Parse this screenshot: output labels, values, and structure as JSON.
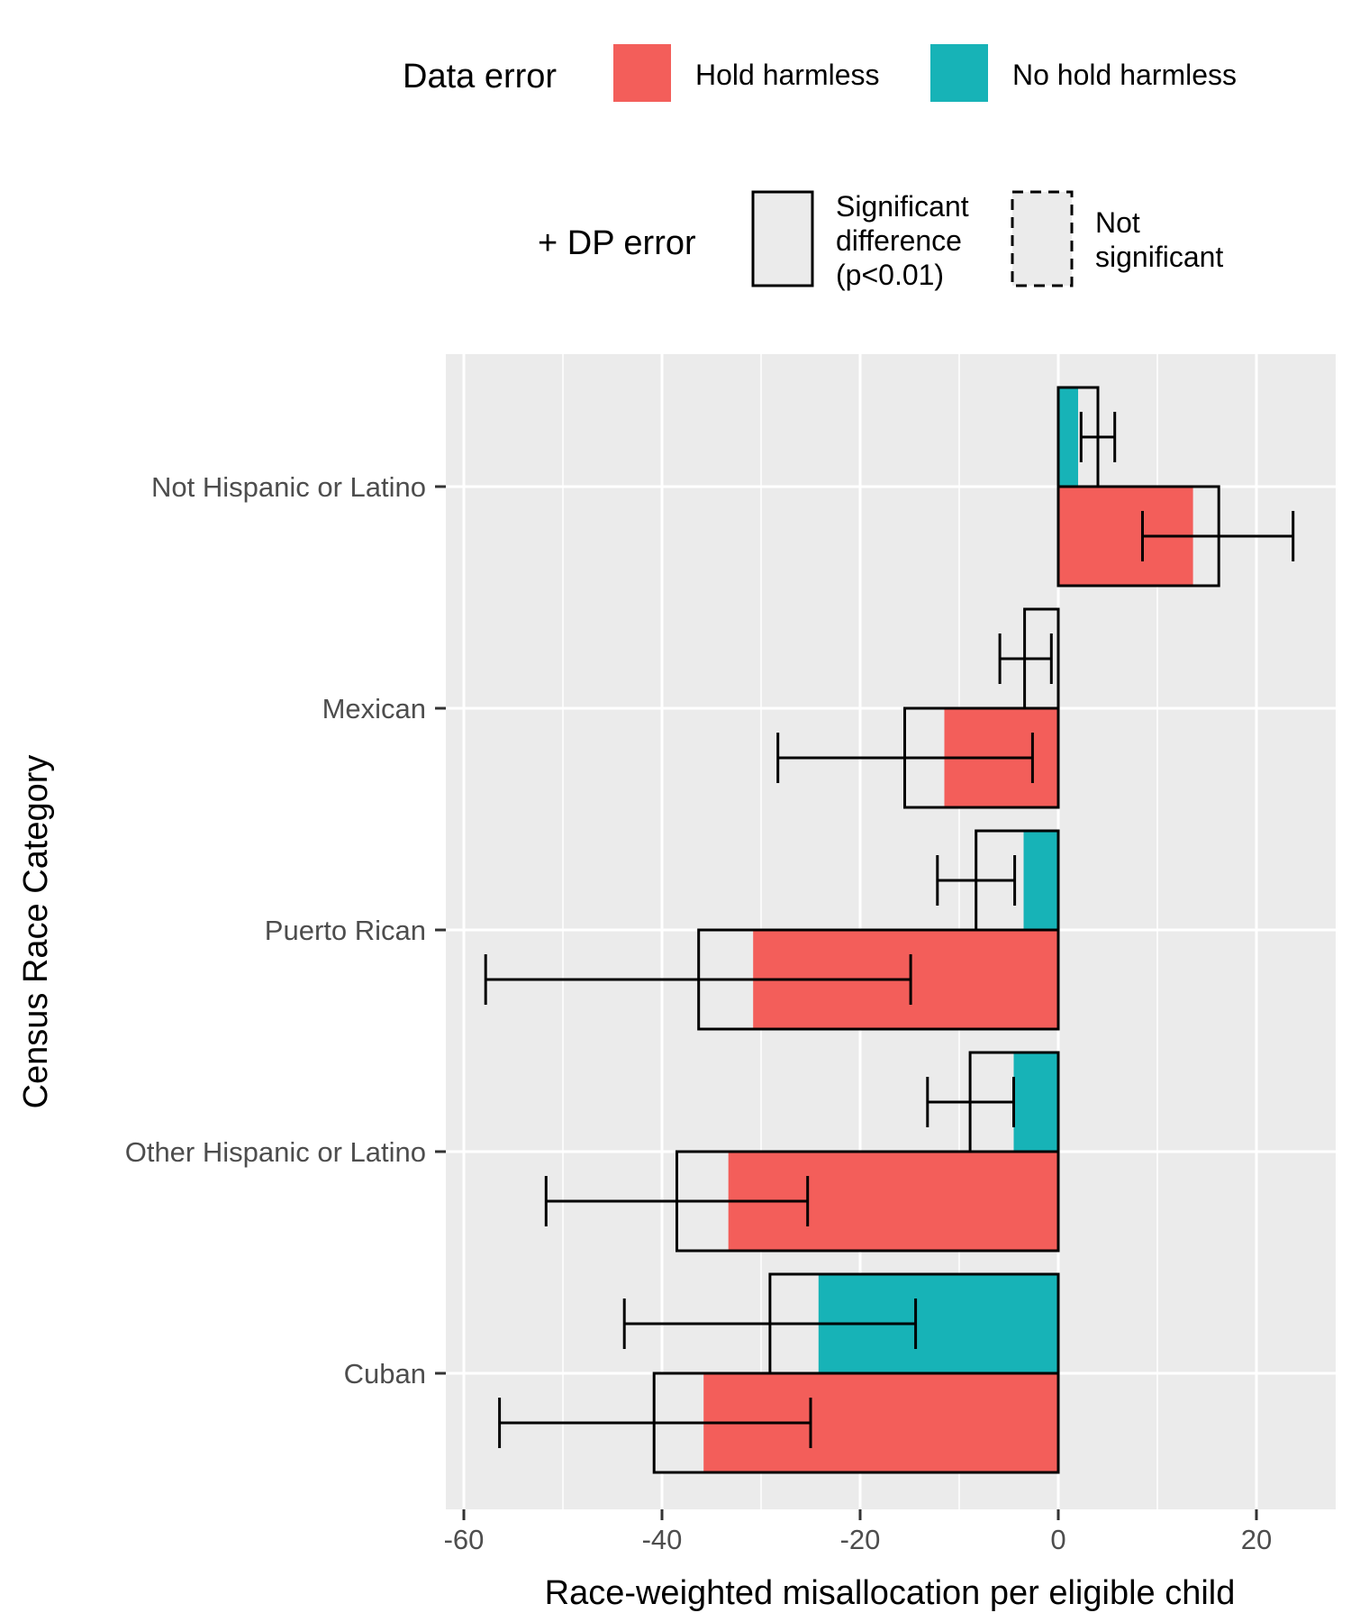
{
  "legend": {
    "fill_title": "Data error",
    "fill_items": [
      {
        "label": "Hold harmless",
        "color": "#F35E5A"
      },
      {
        "label": "No hold harmless",
        "color": "#17B3B7"
      }
    ],
    "outline_title": "+ DP error",
    "outline_items": [
      {
        "label_lines": [
          "Significant",
          "difference",
          "(p<0.01)"
        ],
        "style": "solid"
      },
      {
        "label_lines": [
          "Not",
          "significant"
        ],
        "style": "dashed"
      }
    ]
  },
  "chart_data": {
    "type": "bar",
    "orientation": "horizontal",
    "xlabel": "Race-weighted misallocation per eligible child",
    "ylabel": "Census Race Category",
    "xlim": [
      -62,
      28
    ],
    "xticks": [
      -60,
      -40,
      -20,
      0,
      20
    ],
    "categories": [
      "Not Hispanic or Latino",
      "Mexican",
      "Puerto Rican",
      "Other Hispanic or Latino",
      "Cuban"
    ],
    "series": [
      {
        "name": "Hold harmless",
        "color": "#F35E5A",
        "data_error": [
          13.6,
          -11.5,
          -30.8,
          -33.3,
          -35.8
        ],
        "data_plus_dp": [
          16.2,
          -15.5,
          -36.3,
          -38.5,
          -40.8
        ],
        "ci_low": [
          8.5,
          -28.3,
          -57.8,
          -51.7,
          -56.4
        ],
        "ci_high": [
          23.7,
          -2.6,
          -14.9,
          -25.3,
          -25.0
        ],
        "significance": [
          "significant",
          "significant",
          "significant",
          "significant",
          "significant"
        ]
      },
      {
        "name": "No hold harmless",
        "color": "#17B3B7",
        "data_error": [
          2.0,
          0.0,
          -3.5,
          -4.5,
          -24.2
        ],
        "data_plus_dp": [
          4.0,
          -3.4,
          -8.3,
          -8.9,
          -29.1
        ],
        "ci_low": [
          2.3,
          -5.9,
          -12.2,
          -13.2,
          -43.8
        ],
        "ci_high": [
          5.7,
          -0.7,
          -4.4,
          -4.5,
          -14.4
        ],
        "significance": [
          "significant",
          "significant",
          "significant",
          "significant",
          "significant"
        ]
      }
    ],
    "grid": true,
    "legend_position": "top"
  }
}
